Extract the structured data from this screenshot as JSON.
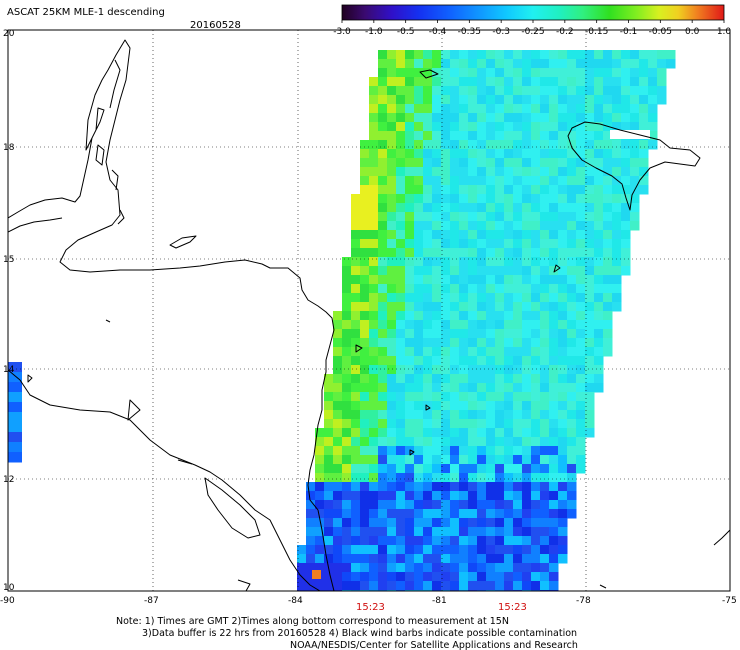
{
  "header": {
    "title": "ASCAT 25KM MLE-1 descending",
    "date": "20160528"
  },
  "colorbar": {
    "ticks": [
      "-3.0",
      "-1.0",
      "-0.5",
      "-0.4",
      "-0.35",
      "-0.3",
      "-0.25",
      "-0.2",
      "-0.15",
      "-0.1",
      "-0.05",
      "0.0",
      "1.0"
    ],
    "colors": [
      "#1a0018",
      "#3c0a7a",
      "#2a10c8",
      "#1a40f0",
      "#1a80ff",
      "#18c0ff",
      "#20f0f0",
      "#30f0b0",
      "#30e020",
      "#a0f020",
      "#f0e820",
      "#f08020",
      "#e02010"
    ]
  },
  "map": {
    "lat_labels": [
      "20",
      "18",
      "15",
      "14",
      "12",
      "10"
    ],
    "lon_labels": [
      "-90",
      "-87",
      "-84",
      "-81",
      "-78",
      "-75"
    ],
    "time_labels": [
      "15:23",
      "15:23"
    ]
  },
  "notes": {
    "line1": "Note: 1) Times are GMT 2)Times along bottom correspond to measurement at 15N",
    "line2": "3)Data buffer is 22 hrs from 20160528 4) Black wind barbs indicate possible contamination",
    "line3": "NOAA/NESDIS/Center for Satellite Applications and Research"
  }
}
